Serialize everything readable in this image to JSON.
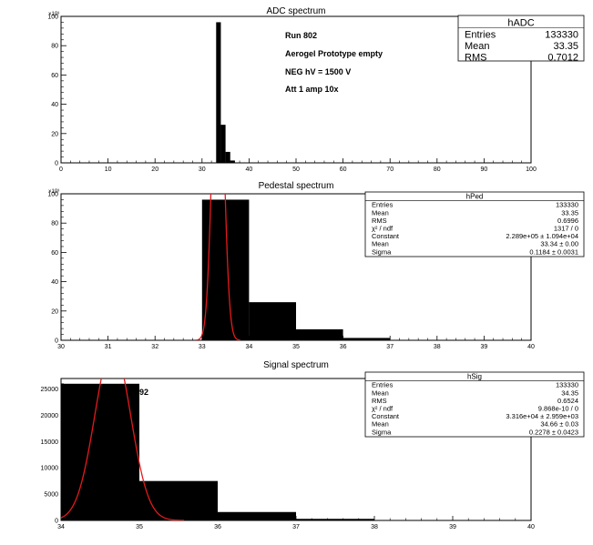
{
  "chart_data": [
    {
      "type": "bar",
      "title": "ADC spectrum",
      "xlim": [
        0,
        100
      ],
      "ylim": [
        0,
        100000
      ],
      "y_exponent_label": "×10³",
      "x_ticks": [
        "0",
        "10",
        "20",
        "30",
        "40",
        "50",
        "60",
        "70",
        "80",
        "90",
        "100"
      ],
      "y_ticks": [
        "0",
        "20",
        "40",
        "60",
        "80",
        "100"
      ],
      "bins": [
        {
          "x0": 33,
          "x1": 34,
          "value": 96000
        },
        {
          "x0": 34,
          "x1": 35,
          "value": 26000
        },
        {
          "x0": 35,
          "x1": 36,
          "value": 7500
        },
        {
          "x0": 36,
          "x1": 37,
          "value": 1600
        },
        {
          "x0": 37,
          "x1": 38,
          "value": 300
        }
      ],
      "annotations": [
        "Run  802",
        "Aerogel Prototype empty",
        "NEG hV = 1500 V",
        "Att 1 amp 10x"
      ],
      "stats": {
        "name": "hADC",
        "rows": [
          {
            "label": "Entries",
            "value": "133330"
          },
          {
            "label": "Mean",
            "value": "33.35"
          },
          {
            "label": "RMS",
            "value": "0.7012"
          }
        ]
      }
    },
    {
      "type": "bar",
      "title": "Pedestal spectrum",
      "xlim": [
        30,
        40
      ],
      "ylim": [
        0,
        100000
      ],
      "y_exponent_label": "×10³",
      "x_ticks": [
        "30",
        "31",
        "32",
        "33",
        "34",
        "35",
        "36",
        "37",
        "38",
        "39",
        "40"
      ],
      "y_ticks": [
        "0",
        "20",
        "40",
        "60",
        "80",
        "100"
      ],
      "bins": [
        {
          "x0": 32,
          "x1": 33,
          "value": 300
        },
        {
          "x0": 33,
          "x1": 34,
          "value": 96000
        },
        {
          "x0": 34,
          "x1": 35,
          "value": 26000
        },
        {
          "x0": 35,
          "x1": 36,
          "value": 7500
        },
        {
          "x0": 36,
          "x1": 37,
          "value": 1600
        },
        {
          "x0": 37,
          "x1": 38,
          "value": 300
        }
      ],
      "fit": {
        "type": "gaussian",
        "constant": 228900,
        "mean": 33.34,
        "sigma": 0.1184,
        "color": "#e41a1c"
      },
      "stats": {
        "name": "hPed",
        "rows": [
          {
            "label": "Entries",
            "value": "133330"
          },
          {
            "label": "Mean",
            "value": "33.35"
          },
          {
            "label": "RMS",
            "value": "0.6996"
          },
          {
            "label": "χ² / ndf",
            "value": "1317 / 0"
          },
          {
            "label": "Constant",
            "value": "2.289e+05 ± 1.094e+04"
          },
          {
            "label": "Mean",
            "value": "33.34 ± 0.00"
          },
          {
            "label": "Sigma",
            "value": "0.1184 ± 0.0031"
          }
        ]
      }
    },
    {
      "type": "bar",
      "title": "Signal spectrum",
      "xlim": [
        34,
        40
      ],
      "ylim": [
        0,
        27000
      ],
      "x_ticks": [
        "34",
        "35",
        "36",
        "37",
        "38",
        "39",
        "40"
      ],
      "y_ticks": [
        "0",
        "5000",
        "10000",
        "15000",
        "20000",
        "25000"
      ],
      "bins": [
        {
          "x0": 34,
          "x1": 35,
          "value": 26000
        },
        {
          "x0": 35,
          "x1": 36,
          "value": 7500
        },
        {
          "x0": 36,
          "x1": 37,
          "value": 1600
        },
        {
          "x0": 37,
          "x1": 38,
          "value": 300
        },
        {
          "x0": 38,
          "x1": 39,
          "value": 60
        }
      ],
      "bar_label": {
        "text": "92",
        "bin": 0
      },
      "fit": {
        "type": "gaussian",
        "constant": 33160,
        "mean": 34.66,
        "sigma": 0.2278,
        "color": "#e41a1c"
      },
      "stats": {
        "name": "hSig",
        "rows": [
          {
            "label": "Entries",
            "value": "133330"
          },
          {
            "label": "Mean",
            "value": "34.35"
          },
          {
            "label": "RMS",
            "value": "0.6524"
          },
          {
            "label": "χ² / ndf",
            "value": "9.868e-10 / 0"
          },
          {
            "label": "Constant",
            "value": "3.316e+04 ± 2.959e+03"
          },
          {
            "label": "Mean",
            "value": "34.66 ± 0.03"
          },
          {
            "label": "Sigma",
            "value": "0.2278 ± 0.0423"
          }
        ]
      }
    }
  ]
}
